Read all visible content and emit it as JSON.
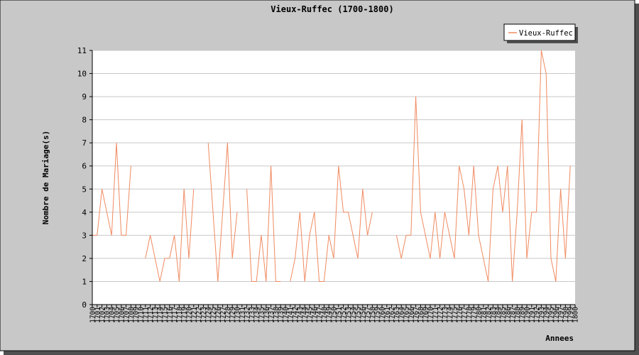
{
  "chart_data": {
    "type": "line",
    "title": "Vieux-Ruffec (1700-1800)",
    "xlabel": "Annees",
    "ylabel": "Nombre de Mariage(s)",
    "ylim": [
      0,
      11
    ],
    "yticks": [
      0,
      1,
      2,
      3,
      4,
      5,
      6,
      7,
      8,
      9,
      10,
      11
    ],
    "grid": true,
    "legend_position": "top-right",
    "colors": {
      "line": "#f08a60",
      "background": "#c8c8c8",
      "plot_background": "#ffffff",
      "grid": "#c8c8c8"
    },
    "categories": [
      "1700",
      "1701",
      "1702",
      "1703",
      "1704",
      "1705",
      "1706",
      "1707",
      "1708",
      "1709",
      "1710",
      "1711",
      "1712",
      "1713",
      "1714",
      "1715",
      "1716",
      "1717",
      "1718",
      "1719",
      "1720",
      "1721",
      "1722",
      "1723",
      "1724",
      "1725",
      "1726",
      "1727",
      "1728",
      "1729",
      "1730",
      "1731",
      "1732",
      "1733",
      "1734",
      "1735",
      "1736",
      "1737",
      "1738",
      "1739",
      "1740",
      "1741",
      "1742",
      "1743",
      "1744",
      "1745",
      "1746",
      "1747",
      "1748",
      "1749",
      "1750",
      "1751",
      "1752",
      "1753",
      "1754",
      "1755",
      "1756",
      "1757",
      "1758",
      "1759",
      "1760",
      "1761",
      "1762",
      "1763",
      "1764",
      "1765",
      "1766",
      "1767",
      "1768",
      "1769",
      "1770",
      "1771",
      "1772",
      "1773",
      "1774",
      "1775",
      "1776",
      "1777",
      "1778",
      "1779",
      "1780",
      "1781",
      "1782",
      "1783",
      "1784",
      "1785",
      "1786",
      "1787",
      "1788",
      "1789",
      "1790",
      "1791",
      "1792",
      "1793",
      "1794",
      "1795",
      "1796",
      "1797",
      "1798",
      "1799",
      "1800"
    ],
    "series": [
      {
        "name": "Vieux-Ruffec",
        "values": [
          3,
          3,
          5,
          4,
          3,
          7,
          3,
          3,
          6,
          null,
          null,
          2,
          3,
          2,
          1,
          2,
          2,
          3,
          1,
          5,
          2,
          5,
          null,
          null,
          7,
          4,
          1,
          4,
          7,
          2,
          4,
          null,
          5,
          1,
          1,
          3,
          1,
          6,
          1,
          1,
          null,
          1,
          2,
          4,
          1,
          3,
          4,
          1,
          1,
          3,
          2,
          6,
          4,
          4,
          3,
          2,
          5,
          3,
          4,
          null,
          null,
          null,
          null,
          3,
          2,
          3,
          3,
          9,
          4,
          3,
          2,
          4,
          2,
          4,
          3,
          2,
          6,
          5,
          3,
          6,
          3,
          2,
          1,
          5,
          6,
          4,
          6,
          1,
          4,
          8,
          2,
          4,
          4,
          11,
          10,
          2,
          1,
          5,
          2,
          6,
          null
        ]
      }
    ]
  }
}
